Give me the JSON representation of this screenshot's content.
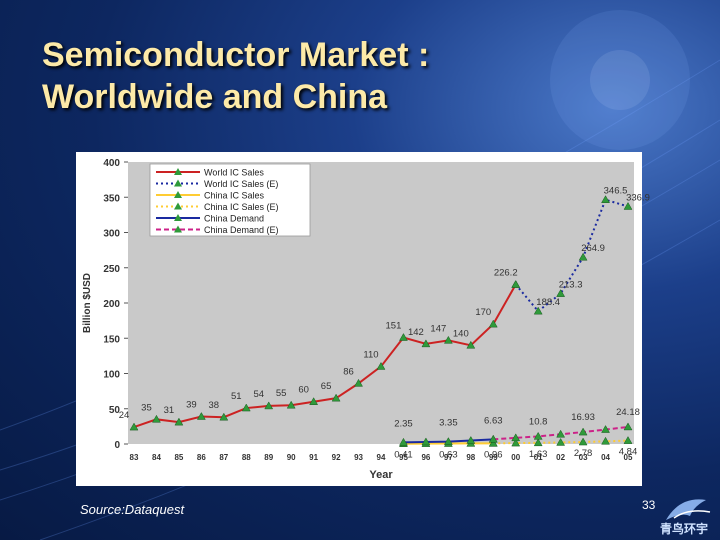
{
  "slide": {
    "title_line1": "Semiconductor Market :",
    "title_line2": "Worldwide and China",
    "source": "Source:Dataquest",
    "page_number": "33",
    "logo_text": "青鸟环宇"
  },
  "colors": {
    "title": "#fdeaa8",
    "background": "#0d2760",
    "world_line": "#cc2222",
    "world_est": "#1a2aa0",
    "china_sales": "#ffcc33",
    "china_demand": "#1a2aa0",
    "china_demand_est": "#cc2288",
    "marker": "#2f9a3a"
  },
  "chart_data": {
    "type": "line",
    "title": "",
    "xlabel": "Year",
    "ylabel": "Billion $USD",
    "ylim": [
      0,
      400
    ],
    "yticks": [
      0,
      50,
      100,
      150,
      200,
      250,
      300,
      350,
      400
    ],
    "categories": [
      "83",
      "84",
      "85",
      "86",
      "87",
      "88",
      "89",
      "90",
      "91",
      "92",
      "93",
      "94",
      "95",
      "96",
      "97",
      "98",
      "99",
      "00",
      "01",
      "02",
      "03",
      "04",
      "05"
    ],
    "legend": [
      "World IC Sales",
      "World IC Sales (E)",
      "China IC Sales",
      "China IC Sales (E)",
      "China Demand",
      "China Demand (E)"
    ],
    "legend_position": "top-left",
    "series": [
      {
        "name": "World IC Sales",
        "style": "solid",
        "color": "#cc2222",
        "x": [
          "83",
          "84",
          "85",
          "86",
          "87",
          "88",
          "89",
          "90",
          "91",
          "92",
          "93",
          "94",
          "95",
          "96",
          "97",
          "98",
          "99",
          "00"
        ],
        "values": [
          24,
          35,
          31,
          39,
          38,
          51,
          54,
          55,
          60,
          65,
          86,
          110,
          151,
          142,
          147,
          140,
          170,
          226.2
        ],
        "labels": [
          "24",
          "35",
          "31",
          "39",
          "38",
          "51",
          "54",
          "55",
          "60",
          "65",
          "86",
          "110",
          "151",
          "142",
          "147",
          "140",
          "170",
          "226.2"
        ]
      },
      {
        "name": "World IC Sales (E)",
        "style": "dotted",
        "color": "#1a2aa0",
        "x": [
          "00",
          "01",
          "02",
          "03",
          "04",
          "05"
        ],
        "values": [
          226.2,
          188.4,
          213.3,
          264.9,
          346.5,
          336.9
        ],
        "labels": [
          "",
          "188.4",
          "213.3",
          "264.9",
          "346.5",
          "336.9"
        ]
      },
      {
        "name": "China IC Sales",
        "style": "solid",
        "color": "#ffcc33",
        "x": [
          "95",
          "96",
          "97",
          "98",
          "99"
        ],
        "values": [
          0.41,
          0.5,
          0.63,
          0.8,
          0.96
        ],
        "labels": [
          "0.41",
          "",
          "0.63",
          "",
          "0.96"
        ]
      },
      {
        "name": "China IC Sales (E)",
        "style": "dotted",
        "color": "#ffcc33",
        "x": [
          "99",
          "00",
          "01",
          "02",
          "03",
          "04",
          "05"
        ],
        "values": [
          0.96,
          1.3,
          1.63,
          2.2,
          2.78,
          3.8,
          4.84
        ],
        "labels": [
          "",
          "",
          "1.63",
          "",
          "2.78",
          "",
          "4.84"
        ]
      },
      {
        "name": "China Demand",
        "style": "solid",
        "color": "#1a2aa0",
        "x": [
          "95",
          "96",
          "97",
          "98",
          "99"
        ],
        "values": [
          2.35,
          2.9,
          3.35,
          5.0,
          6.63
        ],
        "labels": [
          "2.35",
          "",
          "3.35",
          "",
          "6.63"
        ]
      },
      {
        "name": "China Demand (E)",
        "style": "dashed",
        "color": "#cc2288",
        "x": [
          "99",
          "00",
          "01",
          "02",
          "03",
          "04",
          "05"
        ],
        "values": [
          6.63,
          8.7,
          10.8,
          13.8,
          16.93,
          20.5,
          24.18
        ],
        "labels": [
          "",
          "",
          "10.8",
          "",
          "16.93",
          "",
          "24.18"
        ]
      }
    ]
  }
}
